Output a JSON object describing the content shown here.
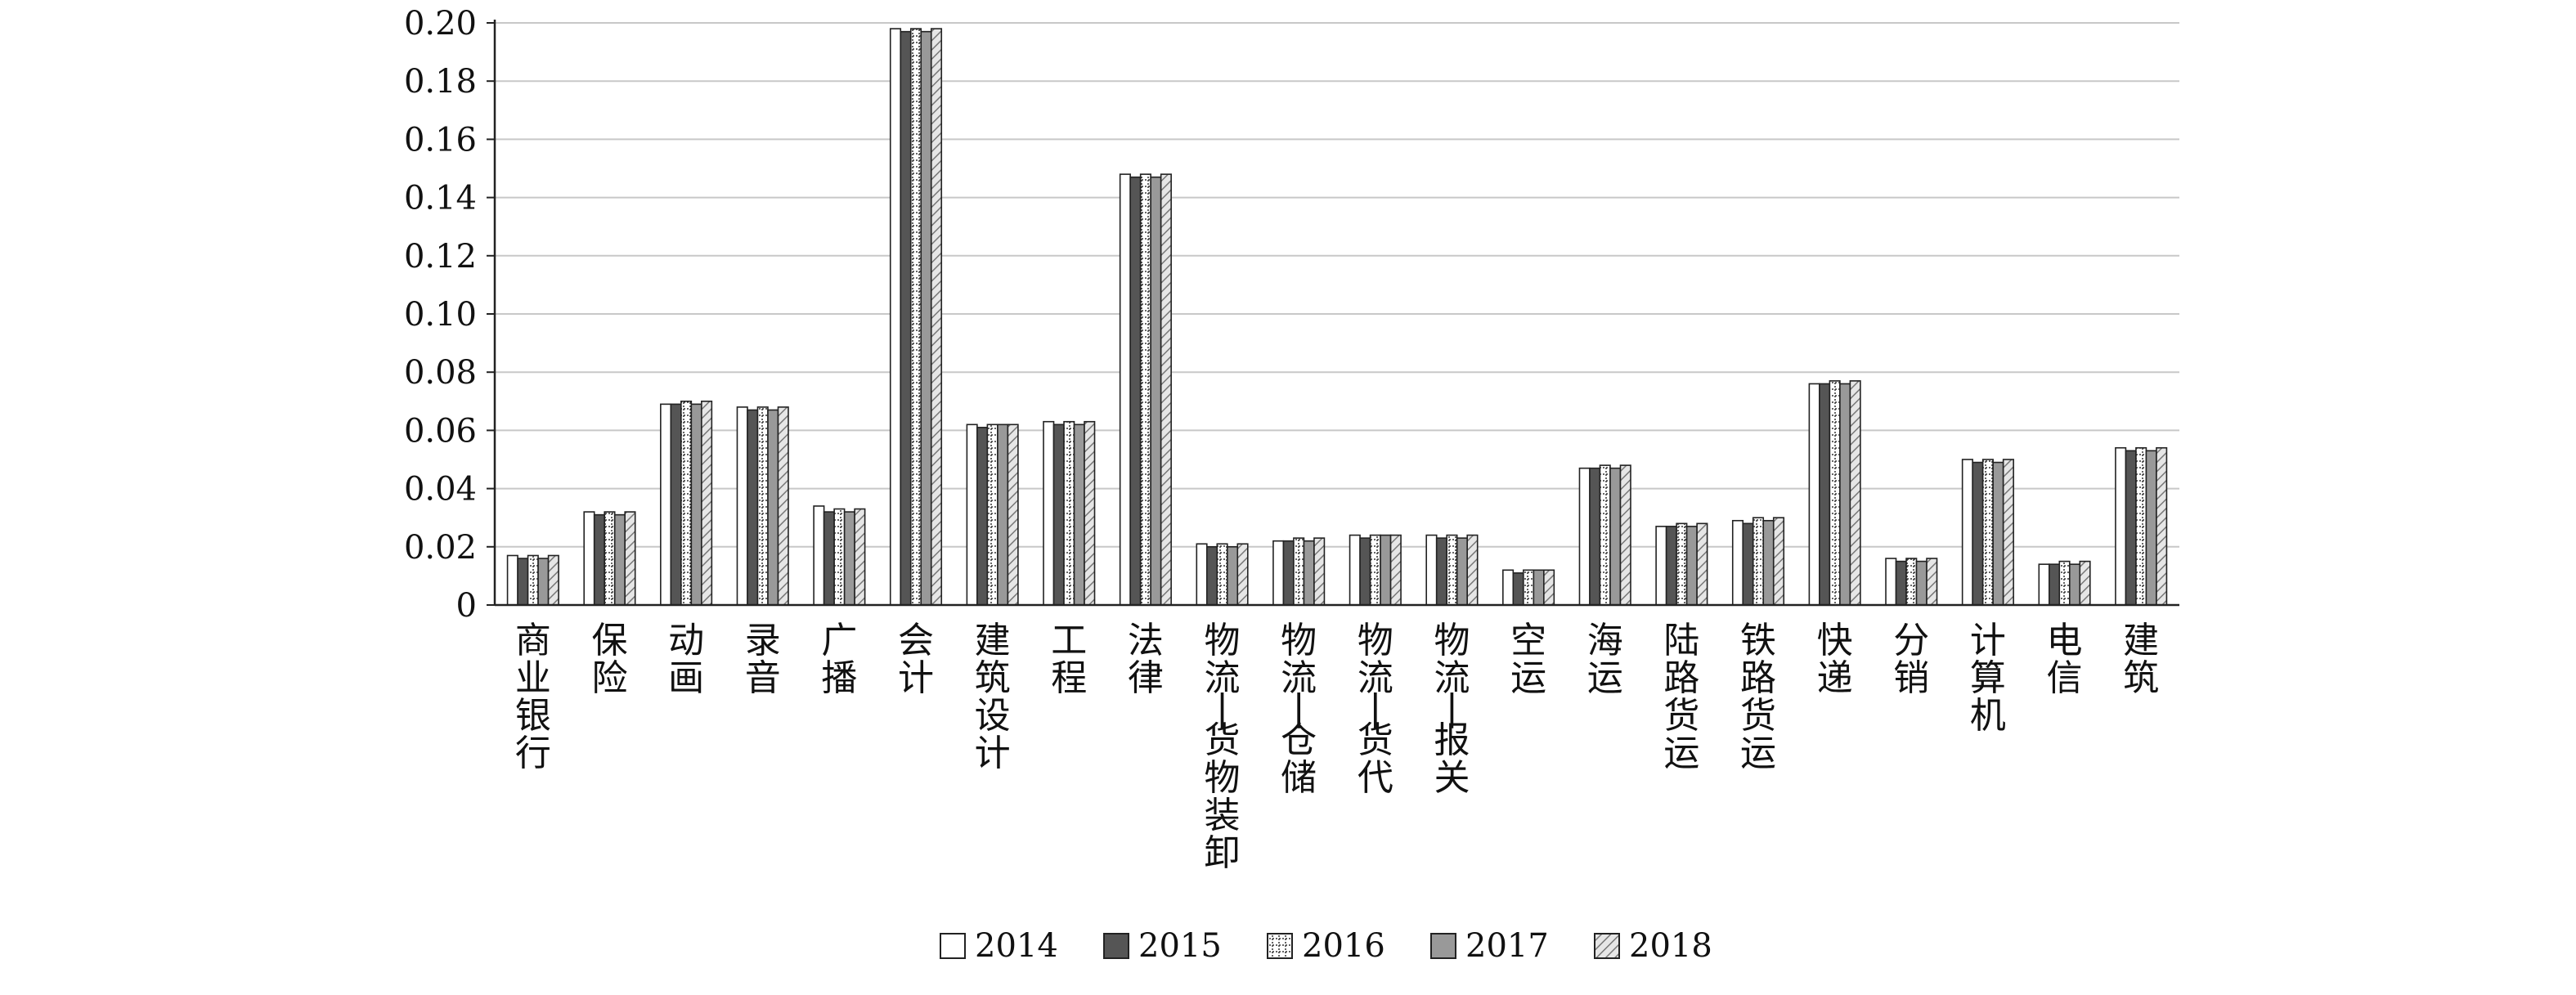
{
  "chart_data": {
    "type": "bar",
    "title": "",
    "xlabel": "",
    "ylabel": "",
    "ylim": [
      0,
      0.2
    ],
    "yticks": [
      "0",
      "0.02",
      "0.04",
      "0.06",
      "0.08",
      "0.10",
      "0.12",
      "0.14",
      "0.16",
      "0.18",
      "0.20"
    ],
    "grid": true,
    "legend_position": "bottom",
    "categories": [
      "商业银行",
      "保险",
      "动画",
      "录音",
      "广播",
      "会计",
      "建筑设计",
      "工程",
      "法律",
      "物流-货物装卸",
      "物流-仓储",
      "物流-货代",
      "物流-报关",
      "空运",
      "海运",
      "陆路货运",
      "铁路货运",
      "快递",
      "分销",
      "计算机",
      "电信",
      "建筑"
    ],
    "series": [
      {
        "name": "2014",
        "color": "#ffffff",
        "pattern": "plain",
        "values": [
          0.017,
          0.032,
          0.069,
          0.068,
          0.034,
          0.198,
          0.062,
          0.063,
          0.148,
          0.021,
          0.022,
          0.024,
          0.024,
          0.012,
          0.047,
          0.027,
          0.029,
          0.076,
          0.016,
          0.05,
          0.014,
          0.054
        ]
      },
      {
        "name": "2015",
        "color": "#555555",
        "pattern": "solid-dark",
        "values": [
          0.016,
          0.031,
          0.069,
          0.067,
          0.032,
          0.197,
          0.061,
          0.062,
          0.147,
          0.02,
          0.022,
          0.023,
          0.023,
          0.011,
          0.047,
          0.027,
          0.028,
          0.076,
          0.015,
          0.049,
          0.014,
          0.053
        ]
      },
      {
        "name": "2016",
        "color": "#ffffff",
        "pattern": "dotted-cross",
        "values": [
          0.017,
          0.032,
          0.07,
          0.068,
          0.033,
          0.198,
          0.062,
          0.063,
          0.148,
          0.021,
          0.023,
          0.024,
          0.024,
          0.012,
          0.048,
          0.028,
          0.03,
          0.077,
          0.016,
          0.05,
          0.015,
          0.054
        ]
      },
      {
        "name": "2017",
        "color": "#999999",
        "pattern": "solid-gray",
        "values": [
          0.016,
          0.031,
          0.069,
          0.067,
          0.032,
          0.197,
          0.062,
          0.062,
          0.147,
          0.02,
          0.022,
          0.024,
          0.023,
          0.012,
          0.047,
          0.027,
          0.029,
          0.076,
          0.015,
          0.049,
          0.014,
          0.053
        ]
      },
      {
        "name": "2018",
        "color": "#dddddd",
        "pattern": "hatched",
        "values": [
          0.017,
          0.032,
          0.07,
          0.068,
          0.033,
          0.198,
          0.062,
          0.063,
          0.148,
          0.021,
          0.023,
          0.024,
          0.024,
          0.012,
          0.048,
          0.028,
          0.03,
          0.077,
          0.016,
          0.05,
          0.015,
          0.054
        ]
      }
    ]
  }
}
